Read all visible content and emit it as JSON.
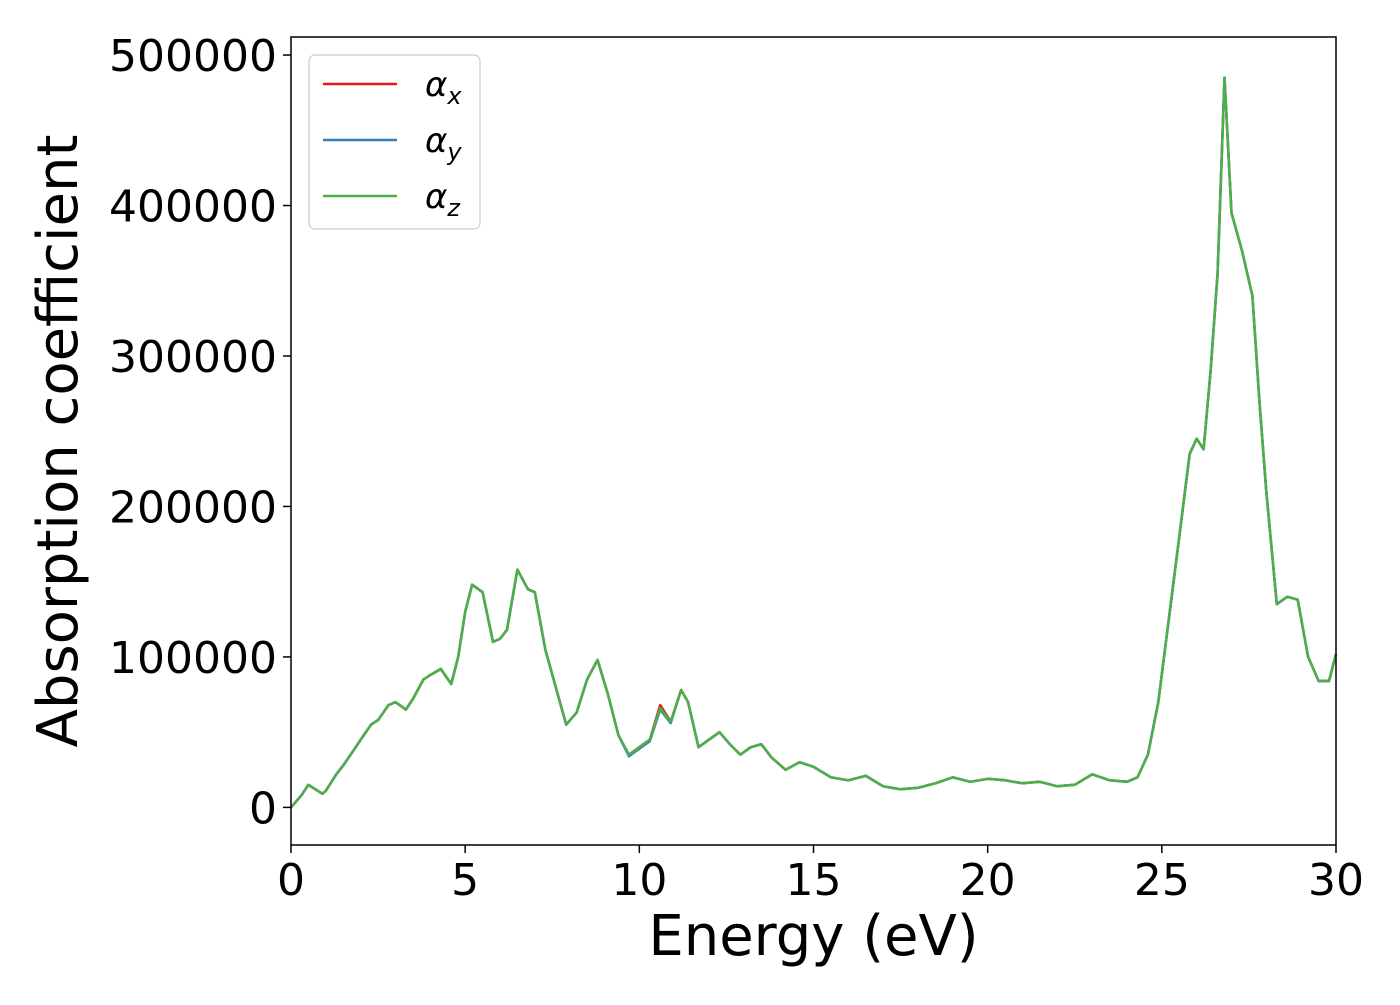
{
  "chart_data": {
    "type": "line",
    "title": "",
    "xlabel": "Energy (eV)",
    "ylabel": "Absorption coefficient",
    "xlim": [
      0,
      30
    ],
    "ylim": [
      -25000,
      512000
    ],
    "xticks": [
      0,
      5,
      10,
      15,
      20,
      25,
      30
    ],
    "xtick_labels": [
      "0",
      "5",
      "10",
      "15",
      "20",
      "25",
      "30"
    ],
    "yticks": [
      0,
      100000,
      200000,
      300000,
      400000,
      500000
    ],
    "ytick_labels": [
      "0",
      "100000",
      "200000",
      "300000",
      "400000",
      "500000"
    ],
    "grid": false,
    "legend_position": "top-left",
    "x": [
      0,
      0.3,
      0.5,
      0.7,
      0.9,
      1.0,
      1.3,
      1.5,
      1.8,
      2.0,
      2.3,
      2.5,
      2.8,
      3.0,
      3.3,
      3.5,
      3.8,
      4.0,
      4.3,
      4.6,
      4.8,
      5.0,
      5.2,
      5.5,
      5.8,
      6.0,
      6.2,
      6.5,
      6.8,
      7.0,
      7.3,
      7.6,
      7.9,
      8.2,
      8.5,
      8.8,
      9.1,
      9.4,
      9.7,
      10.0,
      10.3,
      10.6,
      10.9,
      11.2,
      11.4,
      11.7,
      12.0,
      12.3,
      12.6,
      12.9,
      13.2,
      13.5,
      13.8,
      14.2,
      14.6,
      15.0,
      15.5,
      16.0,
      16.5,
      17.0,
      17.5,
      18.0,
      18.5,
      19.0,
      19.5,
      20.0,
      20.5,
      21.0,
      21.5,
      22.0,
      22.5,
      23.0,
      23.5,
      24.0,
      24.3,
      24.6,
      24.9,
      25.2,
      25.5,
      25.8,
      26.0,
      26.2,
      26.4,
      26.6,
      26.8,
      27.0,
      27.3,
      27.6,
      27.8,
      28.0,
      28.3,
      28.6,
      28.9,
      29.2,
      29.5,
      29.8,
      30.0
    ],
    "series": [
      {
        "name": "αx",
        "color": "#e41a1c",
        "values": [
          0,
          8000,
          15000,
          12000,
          9000,
          11000,
          22000,
          28000,
          38000,
          45000,
          55000,
          58000,
          68000,
          70000,
          65000,
          72000,
          85000,
          88000,
          92000,
          82000,
          100000,
          130000,
          148000,
          143000,
          110000,
          112000,
          118000,
          158000,
          145000,
          143000,
          105000,
          80000,
          55000,
          63000,
          85000,
          98000,
          75000,
          48000,
          35000,
          40000,
          45000,
          68000,
          57000,
          78000,
          70000,
          40000,
          45000,
          50000,
          42000,
          35000,
          40000,
          42000,
          33000,
          25000,
          30000,
          27000,
          20000,
          18000,
          21000,
          14000,
          12000,
          13000,
          16000,
          20000,
          17000,
          19000,
          18000,
          16000,
          17000,
          14000,
          15000,
          22000,
          18000,
          17000,
          20000,
          35000,
          70000,
          125000,
          180000,
          235000,
          245000,
          238000,
          290000,
          355000,
          485000,
          395000,
          370000,
          340000,
          270000,
          210000,
          135000,
          140000,
          138000,
          100000,
          84000,
          84000,
          102000
        ]
      },
      {
        "name": "αy",
        "color": "#377eb8",
        "values": [
          0,
          8000,
          15000,
          12000,
          9000,
          11000,
          22000,
          28000,
          38000,
          45000,
          55000,
          58000,
          68000,
          70000,
          65000,
          72000,
          85000,
          88000,
          92000,
          82000,
          100000,
          130000,
          148000,
          143000,
          110000,
          112000,
          118000,
          158000,
          145000,
          143000,
          105000,
          80000,
          55000,
          63000,
          85000,
          98000,
          75000,
          48000,
          34000,
          39000,
          44000,
          65000,
          56000,
          78000,
          70000,
          40000,
          45000,
          50000,
          42000,
          35000,
          40000,
          42000,
          33000,
          25000,
          30000,
          27000,
          20000,
          18000,
          21000,
          14000,
          12000,
          13000,
          16000,
          20000,
          17000,
          19000,
          18000,
          16000,
          17000,
          14000,
          15000,
          22000,
          18000,
          17000,
          20000,
          35000,
          70000,
          125000,
          180000,
          235000,
          245000,
          238000,
          290000,
          355000,
          485000,
          395000,
          370000,
          340000,
          270000,
          210000,
          135000,
          140000,
          138000,
          100000,
          84000,
          84000,
          102000
        ]
      },
      {
        "name": "αz",
        "color": "#4daf4a",
        "values": [
          0,
          8000,
          15000,
          12000,
          9000,
          11000,
          22000,
          28000,
          38000,
          45000,
          55000,
          58000,
          68000,
          70000,
          65000,
          72000,
          85000,
          88000,
          92000,
          82000,
          100000,
          130000,
          148000,
          143000,
          110000,
          112000,
          118000,
          158000,
          145000,
          143000,
          105000,
          80000,
          55000,
          63000,
          85000,
          98000,
          75000,
          48000,
          35000,
          40000,
          45000,
          66000,
          57000,
          78000,
          70000,
          40000,
          45000,
          50000,
          42000,
          35000,
          40000,
          42000,
          33000,
          25000,
          30000,
          27000,
          20000,
          18000,
          21000,
          14000,
          12000,
          13000,
          16000,
          20000,
          17000,
          19000,
          18000,
          16000,
          17000,
          14000,
          15000,
          22000,
          18000,
          17000,
          20000,
          35000,
          70000,
          125000,
          180000,
          235000,
          245000,
          238000,
          290000,
          355000,
          485000,
          395000,
          370000,
          340000,
          270000,
          210000,
          135000,
          140000,
          138000,
          100000,
          84000,
          84000,
          102000
        ]
      }
    ],
    "legend": [
      {
        "symbol": "α",
        "subscript": "x",
        "color": "#e41a1c"
      },
      {
        "symbol": "α",
        "subscript": "y",
        "color": "#377eb8"
      },
      {
        "symbol": "α",
        "subscript": "z",
        "color": "#4daf4a"
      }
    ]
  }
}
